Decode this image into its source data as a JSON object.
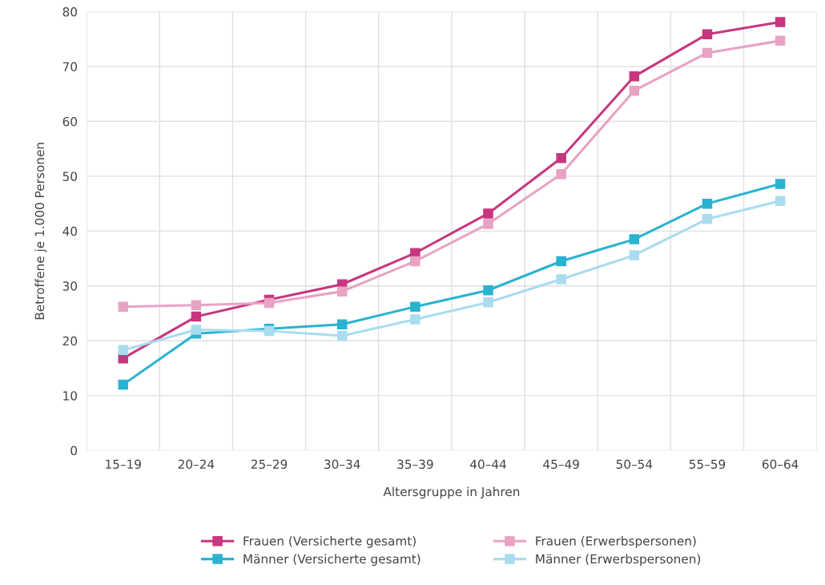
{
  "chart_data": {
    "type": "line",
    "xlabel": "Altersgruppe in Jahren",
    "ylabel": "Betroffene je 1.000 Personen",
    "categories": [
      "15–19",
      "20–24",
      "25–29",
      "30–34",
      "35–39",
      "40–44",
      "45–49",
      "50–54",
      "55–59",
      "60–64"
    ],
    "series": [
      {
        "name": "Frauen (Versicherte gesamt)",
        "color": "#c8367f",
        "values": [
          16.8,
          24.4,
          27.5,
          30.3,
          36.0,
          43.2,
          53.3,
          68.2,
          75.9,
          78.1
        ]
      },
      {
        "name": "Frauen (Erwerbspersonen)",
        "color": "#e8a3c4",
        "values": [
          26.2,
          26.5,
          26.9,
          29.0,
          34.5,
          41.3,
          50.4,
          65.6,
          72.5,
          74.7
        ]
      },
      {
        "name": "Männer (Versicherte gesamt)",
        "color": "#2ab3d1",
        "values": [
          12.0,
          21.3,
          22.2,
          23.0,
          26.2,
          29.2,
          34.5,
          38.5,
          45.0,
          48.6
        ]
      },
      {
        "name": "Männer (Erwerbspersonen)",
        "color": "#a9dcee",
        "values": [
          18.3,
          22.0,
          21.8,
          20.9,
          23.9,
          27.0,
          31.2,
          35.6,
          42.2,
          45.5
        ]
      }
    ],
    "ylim": [
      0,
      80
    ],
    "yticks": [
      0,
      10,
      20,
      30,
      40,
      50,
      60,
      70,
      80
    ],
    "grid": true,
    "legend": "bottom",
    "marker": "square",
    "line_style": "solid"
  }
}
